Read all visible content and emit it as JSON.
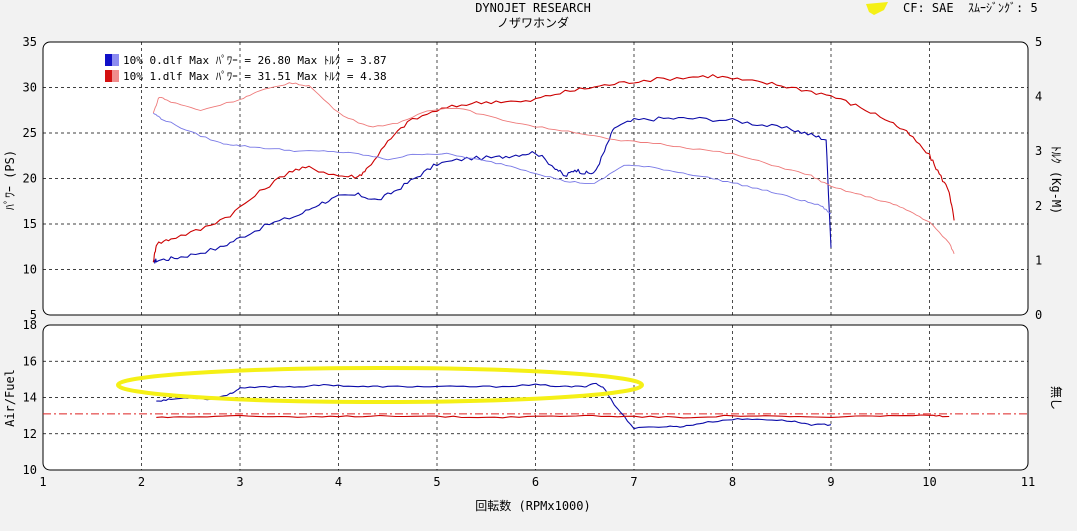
{
  "header": {
    "title": "DYNOJET RESEARCH",
    "subtitle": "ノザワホンダ",
    "cf_label": "CF: SAE",
    "smoothing_label": "ｽﾑｰｼﾞﾝｸﾞ: 5"
  },
  "legend": [
    {
      "text": "10% 0.dlf Max ﾊﾟﾜｰ = 26.80  Max ﾄﾙｸ = 3.87",
      "color": "#1010c8",
      "light": "#8c8cf0"
    },
    {
      "text": "10% 1.dlf Max ﾊﾟﾜｰ = 31.51  Max ﾄﾙｸ = 4.38",
      "color": "#d41010",
      "light": "#f08c8c"
    }
  ],
  "colors": {
    "run0_power": "#0a0aa8",
    "run0_torque": "#7878e6",
    "run1_power": "#cc0000",
    "run1_torque": "#ee7a7a",
    "afr_ref": "#dd2222",
    "highlight": "#f5f016"
  },
  "chart_data": [
    {
      "type": "line",
      "title": "",
      "xlabel": "回転数 (RPMx1000)",
      "ylabel": "ﾊﾟﾜｰ (PS)",
      "y2label": "ﾄﾙｸ (Kg-M)",
      "xlim": [
        1,
        11
      ],
      "ylim": [
        5,
        35
      ],
      "y2lim": [
        0,
        5
      ],
      "x_ticks": [
        1,
        2,
        3,
        4,
        5,
        6,
        7,
        8,
        9,
        10,
        11
      ],
      "y_ticks": [
        5,
        10,
        15,
        20,
        25,
        30,
        35
      ],
      "y2_ticks": [
        0,
        1,
        2,
        3,
        4,
        5
      ],
      "grid": true,
      "series": [
        {
          "name": "10% 0.dlf",
          "kind": "power",
          "axis": "left",
          "x": [
            2.12,
            2.15,
            2.3,
            2.5,
            2.8,
            3.0,
            3.3,
            3.6,
            3.8,
            4.0,
            4.2,
            4.4,
            4.6,
            4.8,
            5.0,
            5.3,
            5.6,
            5.8,
            6.0,
            6.2,
            6.3,
            6.4,
            6.5,
            6.6,
            6.7,
            6.8,
            7.0,
            7.3,
            7.6,
            8.0,
            8.3,
            8.6,
            8.8,
            8.95,
            9.0
          ],
          "y": [
            10.8,
            11.0,
            11.2,
            11.6,
            12.4,
            13.5,
            15.0,
            16.0,
            17.2,
            18.0,
            18.2,
            17.6,
            18.8,
            20.2,
            21.6,
            22.2,
            22.3,
            22.6,
            22.9,
            21.2,
            20.2,
            21.0,
            20.6,
            20.6,
            23.0,
            25.6,
            26.4,
            26.6,
            26.6,
            26.4,
            25.9,
            25.4,
            24.8,
            24.3,
            12.4
          ]
        },
        {
          "name": "10% 1.dlf",
          "kind": "power",
          "axis": "left",
          "x": [
            2.12,
            2.15,
            2.3,
            2.6,
            2.9,
            3.2,
            3.5,
            3.7,
            4.0,
            4.2,
            4.3,
            4.5,
            4.7,
            5.0,
            5.3,
            5.6,
            5.9,
            6.2,
            6.5,
            6.8,
            7.1,
            7.5,
            7.8,
            8.1,
            8.4,
            8.7,
            9.0,
            9.3,
            9.6,
            9.8,
            10.0,
            10.1,
            10.2,
            10.25
          ],
          "y": [
            10.8,
            12.8,
            13.4,
            14.4,
            16.0,
            18.5,
            20.8,
            21.2,
            20.3,
            20.2,
            21.2,
            24.0,
            26.2,
            27.5,
            28.2,
            28.5,
            28.4,
            29.3,
            29.9,
            30.4,
            30.8,
            31.1,
            31.3,
            30.8,
            30.4,
            29.8,
            29.1,
            27.8,
            26.3,
            24.8,
            22.5,
            20.5,
            18.6,
            15.4
          ]
        },
        {
          "name": "10% 0.dlf",
          "kind": "torque",
          "axis": "right",
          "x": [
            2.12,
            2.2,
            2.5,
            2.8,
            3.0,
            3.3,
            3.6,
            3.9,
            4.2,
            4.5,
            4.8,
            5.1,
            5.4,
            5.7,
            6.0,
            6.3,
            6.6,
            6.9,
            7.2,
            7.5,
            7.8,
            8.1,
            8.4,
            8.7,
            8.9,
            9.0
          ],
          "y": [
            3.7,
            3.6,
            3.35,
            3.15,
            3.1,
            3.05,
            3.0,
            3.0,
            2.95,
            2.85,
            2.95,
            2.95,
            2.85,
            2.75,
            2.6,
            2.45,
            2.4,
            2.75,
            2.7,
            2.6,
            2.5,
            2.38,
            2.25,
            2.1,
            2.0,
            1.85
          ]
        },
        {
          "name": "10% 1.dlf",
          "kind": "torque",
          "axis": "right",
          "x": [
            2.12,
            2.18,
            2.3,
            2.6,
            3.0,
            3.2,
            3.5,
            3.7,
            4.0,
            4.3,
            4.6,
            4.9,
            5.2,
            5.6,
            6.0,
            6.4,
            6.8,
            7.2,
            7.6,
            8.0,
            8.4,
            8.8,
            9.0,
            9.3,
            9.6,
            9.8,
            10.0,
            10.2,
            10.25
          ],
          "y": [
            3.7,
            4.0,
            3.9,
            3.75,
            3.95,
            4.1,
            4.25,
            4.2,
            3.7,
            3.45,
            3.5,
            3.75,
            3.8,
            3.6,
            3.45,
            3.35,
            3.2,
            3.15,
            3.05,
            2.95,
            2.75,
            2.55,
            2.35,
            2.2,
            2.05,
            1.9,
            1.7,
            1.32,
            1.12
          ]
        }
      ]
    },
    {
      "type": "line",
      "title": "",
      "xlabel": "回転数 (RPMx1000)",
      "ylabel": "Air/Fuel",
      "y2label": "無し",
      "xlim": [
        1,
        11
      ],
      "ylim": [
        10,
        18
      ],
      "x_ticks": [
        1,
        2,
        3,
        4,
        5,
        6,
        7,
        8,
        9,
        10,
        11
      ],
      "y_ticks": [
        10,
        12,
        14,
        16,
        18
      ],
      "grid": true,
      "reference_line": 13.1,
      "series": [
        {
          "name": "10% 0.dlf",
          "kind": "afr",
          "x": [
            2.15,
            2.3,
            2.5,
            2.7,
            2.9,
            3.0,
            3.3,
            3.6,
            3.9,
            4.2,
            4.5,
            4.8,
            5.2,
            5.6,
            6.0,
            6.3,
            6.5,
            6.6,
            6.7,
            6.8,
            7.0,
            7.3,
            7.5,
            7.7,
            8.0,
            8.3,
            8.6,
            8.8,
            9.0
          ],
          "y": [
            13.8,
            13.9,
            14.0,
            13.9,
            14.2,
            14.5,
            14.6,
            14.6,
            14.7,
            14.6,
            14.6,
            14.6,
            14.6,
            14.6,
            14.7,
            14.6,
            14.6,
            14.8,
            14.5,
            13.6,
            12.3,
            12.4,
            12.4,
            12.6,
            12.8,
            12.8,
            12.7,
            12.5,
            12.5
          ]
        },
        {
          "name": "10% 1.dlf",
          "kind": "afr",
          "x": [
            2.15,
            2.5,
            3.0,
            3.5,
            4.0,
            4.5,
            5.0,
            5.5,
            6.0,
            6.5,
            7.0,
            7.5,
            8.0,
            8.5,
            9.0,
            9.5,
            10.0,
            10.2
          ],
          "y": [
            12.9,
            12.95,
            13.0,
            12.9,
            12.95,
            13.0,
            12.95,
            12.9,
            12.95,
            13.0,
            12.95,
            12.9,
            13.0,
            12.95,
            12.9,
            13.0,
            13.0,
            12.95
          ]
        }
      ]
    }
  ]
}
